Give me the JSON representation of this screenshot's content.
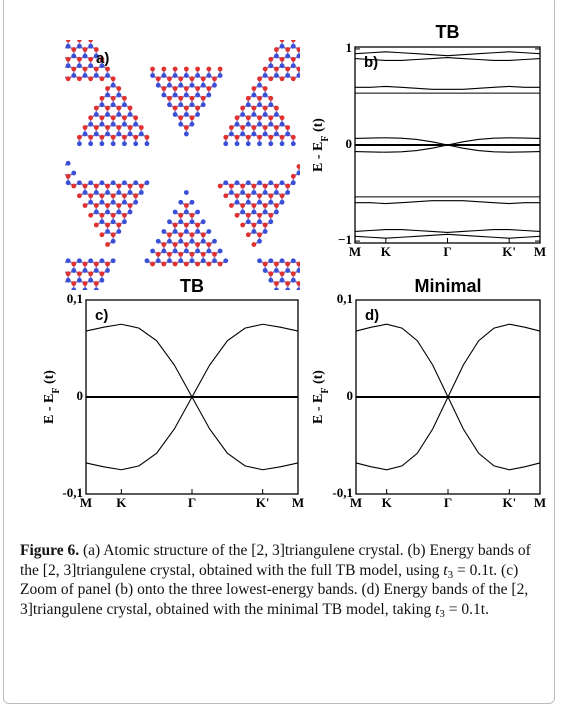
{
  "panel_a": {
    "label": "a)"
  },
  "chart_data": [
    {
      "type": "line",
      "title": "TB",
      "panel_label": "b)",
      "ylabel": {
        "text": "E - E",
        "sub": "F",
        "unit": " (t)"
      },
      "x": [
        0,
        0.25,
        0.5,
        0.75,
        1,
        1.25,
        1.5,
        1.75,
        2,
        2.25,
        2.5,
        2.75,
        3
      ],
      "xlim": [
        0,
        3
      ],
      "xticks": [
        {
          "value": 0,
          "label": "M"
        },
        {
          "value": 0.5,
          "label": "K"
        },
        {
          "value": 1.5,
          "label": "Γ"
        },
        {
          "value": 2.5,
          "label": "K'"
        },
        {
          "value": 3,
          "label": "M"
        }
      ],
      "ylim": [
        -1.02,
        1.02
      ],
      "yticks": [
        {
          "value": -1,
          "label": "−1"
        },
        0,
        1
      ],
      "series": [
        {
          "color": "#000000",
          "values": [
            0.95,
            0.96,
            0.97,
            0.96,
            0.95,
            0.94,
            0.93,
            0.94,
            0.95,
            0.96,
            0.97,
            0.96,
            0.95
          ]
        },
        {
          "color": "#000000",
          "values": [
            0.9,
            0.89,
            0.88,
            0.88,
            0.89,
            0.9,
            0.91,
            0.9,
            0.89,
            0.88,
            0.88,
            0.89,
            0.9
          ]
        },
        {
          "color": "#000000",
          "values": [
            0.6,
            0.6,
            0.61,
            0.6,
            0.59,
            0.58,
            0.58,
            0.58,
            0.59,
            0.6,
            0.61,
            0.6,
            0.6
          ]
        },
        {
          "color": "#000000",
          "values": [
            0.54,
            0.54,
            0.54,
            0.54,
            0.54,
            0.54,
            0.54,
            0.54,
            0.54,
            0.54,
            0.54,
            0.54,
            0.54
          ]
        },
        {
          "color": "#000000",
          "values": [
            0.068,
            0.072,
            0.075,
            0.071,
            0.058,
            0.033,
            0,
            -0.033,
            -0.058,
            -0.071,
            -0.075,
            -0.072,
            -0.068
          ]
        },
        {
          "color": "#000000",
          "values": [
            -0.068,
            -0.072,
            -0.075,
            -0.071,
            -0.058,
            -0.033,
            0,
            0.033,
            0.058,
            0.071,
            0.075,
            0.072,
            0.068
          ]
        },
        {
          "color": "#000000",
          "line_width": 2,
          "values": [
            0,
            0,
            0,
            0,
            0,
            0,
            0,
            0,
            0,
            0,
            0,
            0,
            0
          ]
        },
        {
          "color": "#000000",
          "values": [
            -0.54,
            -0.54,
            -0.54,
            -0.54,
            -0.54,
            -0.54,
            -0.54,
            -0.54,
            -0.54,
            -0.54,
            -0.54,
            -0.54,
            -0.54
          ]
        },
        {
          "color": "#000000",
          "values": [
            -0.6,
            -0.6,
            -0.61,
            -0.6,
            -0.59,
            -0.58,
            -0.58,
            -0.58,
            -0.59,
            -0.6,
            -0.61,
            -0.6,
            -0.6
          ]
        },
        {
          "color": "#000000",
          "values": [
            -0.9,
            -0.89,
            -0.88,
            -0.88,
            -0.89,
            -0.9,
            -0.91,
            -0.9,
            -0.89,
            -0.88,
            -0.88,
            -0.89,
            -0.9
          ]
        },
        {
          "color": "#000000",
          "values": [
            -0.95,
            -0.96,
            -0.97,
            -0.96,
            -0.95,
            -0.94,
            -0.93,
            -0.94,
            -0.95,
            -0.96,
            -0.97,
            -0.96,
            -0.95
          ]
        }
      ]
    },
    {
      "type": "line",
      "title": "TB",
      "panel_label": "c)",
      "ylabel": {
        "text": "E - E",
        "sub": "F",
        "unit": " (t)"
      },
      "x": [
        0,
        0.25,
        0.5,
        0.75,
        1,
        1.25,
        1.5,
        1.75,
        2,
        2.25,
        2.5,
        2.75,
        3
      ],
      "xlim": [
        0,
        3
      ],
      "xticks": [
        {
          "value": 0,
          "label": "M"
        },
        {
          "value": 0.5,
          "label": "K"
        },
        {
          "value": 1.5,
          "label": "Γ"
        },
        {
          "value": 2.5,
          "label": "K'"
        },
        {
          "value": 3,
          "label": "M"
        }
      ],
      "ylim": [
        -0.1,
        0.1
      ],
      "yticks": [
        {
          "value": -0.1,
          "label": "-0,1"
        },
        0,
        {
          "value": 0.1,
          "label": "0,1"
        }
      ],
      "series": [
        {
          "color": "#000000",
          "values": [
            0.068,
            0.072,
            0.075,
            0.071,
            0.058,
            0.033,
            0,
            -0.033,
            -0.058,
            -0.071,
            -0.075,
            -0.072,
            -0.068
          ]
        },
        {
          "color": "#000000",
          "values": [
            -0.068,
            -0.072,
            -0.075,
            -0.071,
            -0.058,
            -0.033,
            0,
            0.033,
            0.058,
            0.071,
            0.075,
            0.072,
            0.068
          ]
        },
        {
          "color": "#000000",
          "line_width": 2,
          "values": [
            0,
            0,
            0,
            0,
            0,
            0,
            0,
            0,
            0,
            0,
            0,
            0,
            0
          ]
        }
      ]
    },
    {
      "type": "line",
      "title": "Minimal",
      "panel_label": "d)",
      "ylabel": {
        "text": "E - E",
        "sub": "F",
        "unit": " (t)"
      },
      "x": [
        0,
        0.25,
        0.5,
        0.75,
        1,
        1.25,
        1.5,
        1.75,
        2,
        2.25,
        2.5,
        2.75,
        3
      ],
      "xlim": [
        0,
        3
      ],
      "xticks": [
        {
          "value": 0,
          "label": "M"
        },
        {
          "value": 0.5,
          "label": "K"
        },
        {
          "value": 1.5,
          "label": "Γ"
        },
        {
          "value": 2.5,
          "label": "K'"
        },
        {
          "value": 3,
          "label": "M"
        }
      ],
      "ylim": [
        -0.1,
        0.1
      ],
      "yticks": [
        {
          "value": -0.1,
          "label": "-0,1"
        },
        0,
        {
          "value": 0.1,
          "label": "0,1"
        }
      ],
      "series": [
        {
          "color": "#000000",
          "values": [
            0.068,
            0.072,
            0.075,
            0.071,
            0.058,
            0.033,
            0,
            -0.033,
            -0.058,
            -0.071,
            -0.075,
            -0.072,
            -0.068
          ]
        },
        {
          "color": "#000000",
          "values": [
            -0.068,
            -0.072,
            -0.075,
            -0.071,
            -0.058,
            -0.033,
            0,
            0.033,
            0.058,
            0.071,
            0.075,
            0.072,
            0.068
          ]
        },
        {
          "color": "#000000",
          "line_width": 2,
          "values": [
            0,
            0,
            0,
            0,
            0,
            0,
            0,
            0,
            0,
            0,
            0,
            0,
            0
          ]
        }
      ]
    }
  ],
  "caption": {
    "label": "Figure 6.",
    "parts": [
      {
        "text": " (a) Atomic structure of the [2, 3]triangulene crystal. (b) Energy bands of the [2, 3]triangulene crystal, obtained with the full TB model, using "
      },
      {
        "text": "t",
        "style": "italic"
      },
      {
        "text": "3",
        "style": "sub"
      },
      {
        "text": " = 0.1t. (c) Zoom of panel (b) onto the three lowest-energy bands. (d) Energy bands of the [2, 3]triangulene crystal, obtained with the minimal TB model, taking "
      },
      {
        "text": "t",
        "style": "italic"
      },
      {
        "text": "3",
        "style": "sub"
      },
      {
        "text": " = 0.1t."
      }
    ]
  }
}
